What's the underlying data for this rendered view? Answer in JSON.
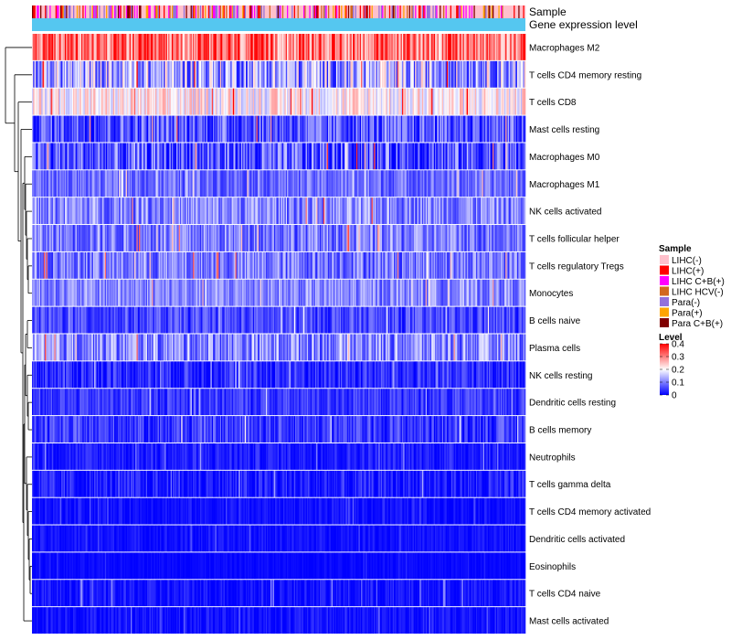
{
  "chart_data": {
    "type": "heatmap",
    "annotation_labels": [
      "Sample",
      "Gene expression level"
    ],
    "rows": [
      {
        "name": "Macrophages M2",
        "mean": 0.3,
        "spread": 0.1
      },
      {
        "name": "T cells CD4 memory resting",
        "mean": 0.12,
        "spread": 0.12
      },
      {
        "name": "T cells CD8",
        "mean": 0.2,
        "spread": 0.07
      },
      {
        "name": "Mast cells resting",
        "mean": 0.06,
        "spread": 0.08
      },
      {
        "name": "Macrophages M0",
        "mean": 0.05,
        "spread": 0.1
      },
      {
        "name": "Macrophages M1",
        "mean": 0.08,
        "spread": 0.05
      },
      {
        "name": "NK cells activated",
        "mean": 0.1,
        "spread": 0.07
      },
      {
        "name": "T cells follicular helper",
        "mean": 0.09,
        "spread": 0.07
      },
      {
        "name": "T cells regulatory  Tregs",
        "mean": 0.09,
        "spread": 0.07
      },
      {
        "name": "Monocytes",
        "mean": 0.1,
        "spread": 0.06
      },
      {
        "name": "B cells naive",
        "mean": 0.05,
        "spread": 0.05
      },
      {
        "name": "Plasma cells",
        "mean": 0.1,
        "spread": 0.08
      },
      {
        "name": "NK cells resting",
        "mean": 0.03,
        "spread": 0.05
      },
      {
        "name": "Dendritic cells resting",
        "mean": 0.04,
        "spread": 0.04
      },
      {
        "name": "B cells memory",
        "mean": 0.04,
        "spread": 0.05
      },
      {
        "name": "Neutrophils",
        "mean": 0.02,
        "spread": 0.03
      },
      {
        "name": "T cells gamma delta",
        "mean": 0.01,
        "spread": 0.05
      },
      {
        "name": "T cells CD4 memory activated",
        "mean": 0.01,
        "spread": 0.02
      },
      {
        "name": "Dendritic cells activated",
        "mean": 0.01,
        "spread": 0.02
      },
      {
        "name": "Eosinophils",
        "mean": 0.005,
        "spread": 0.01
      },
      {
        "name": "T cells CD4 naive",
        "mean": 0.01,
        "spread": 0.03
      },
      {
        "name": "Mast cells activated",
        "mean": 0.01,
        "spread": 0.03
      }
    ],
    "sample_groups": [
      {
        "name": "LIHC(-)",
        "color": "#FFC0CB",
        "weight": 0.45
      },
      {
        "name": "LIHC(+)",
        "color": "#FF0000",
        "weight": 0.12
      },
      {
        "name": "LIHC C+B(+)",
        "color": "#FF00FF",
        "weight": 0.1
      },
      {
        "name": "LIHC HCV(-)",
        "color": "#D2691E",
        "weight": 0.08
      },
      {
        "name": "Para(-)",
        "color": "#9370DB",
        "weight": 0.13
      },
      {
        "name": "Para(+)",
        "color": "#FFA500",
        "weight": 0.06
      },
      {
        "name": "Para C+B(+)",
        "color": "#800000",
        "weight": 0.06
      }
    ],
    "gene_expression_level_color": "#55C7F0",
    "level_legend": {
      "title": "Level",
      "ticks": [
        0.4,
        0.3,
        0.2,
        0.1,
        0
      ],
      "range": [
        0,
        0.4
      ],
      "colors": {
        "low": "#0000FF",
        "mid": "#FFFFFF",
        "high": "#FF0000"
      }
    },
    "sample_legend_title": "Sample",
    "n_samples": 420
  }
}
